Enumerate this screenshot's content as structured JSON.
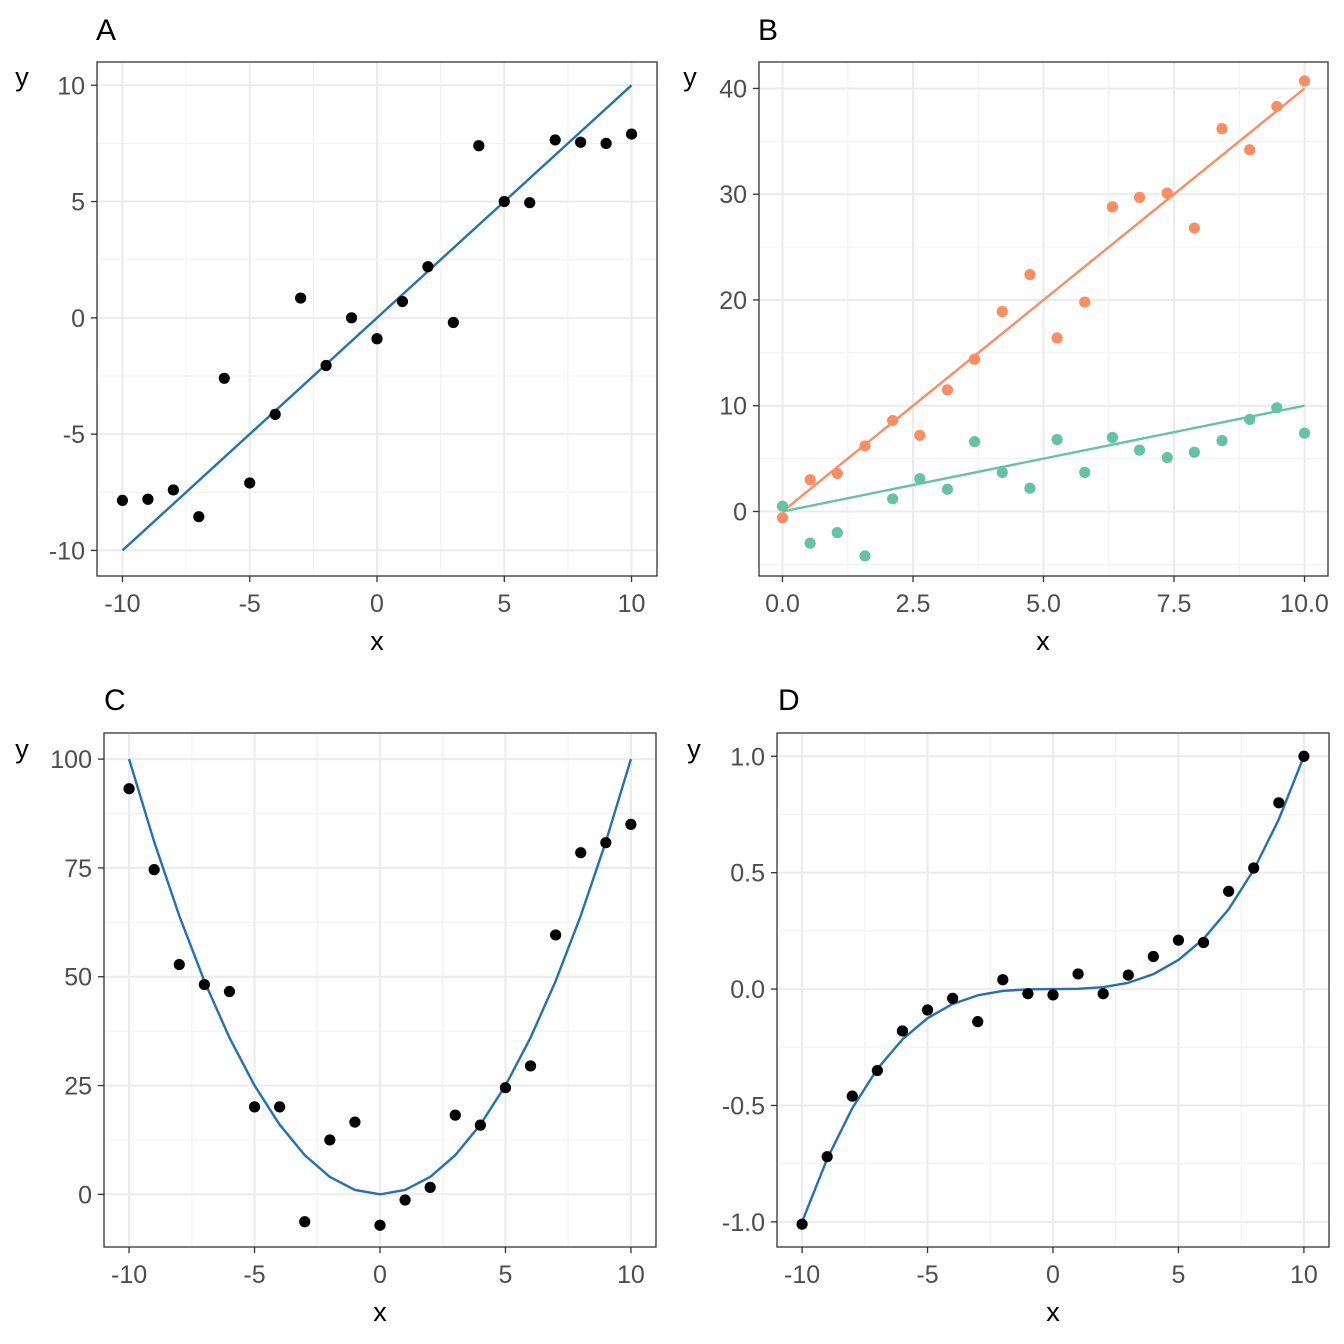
{
  "chart_data": [
    {
      "tag": "A",
      "type": "scatter",
      "title": "",
      "xlabel": "x",
      "ylabel": "y",
      "xlim": [
        -11,
        11
      ],
      "ylim": [
        -11.1,
        11
      ],
      "xticks": [
        -10,
        -5,
        0,
        5,
        10
      ],
      "xtick_labels": [
        "-10",
        "-5",
        "0",
        "5",
        "10"
      ],
      "yticks": [
        -10,
        -5,
        0,
        5,
        10
      ],
      "ytick_labels": [
        "-10",
        "-5",
        "0",
        "5",
        "10"
      ],
      "grid": true,
      "series": [
        {
          "name": "points",
          "kind": "points",
          "color": "#000000",
          "x": [
            -10,
            -9,
            -8,
            -7,
            -6,
            -5,
            -4,
            -3,
            -2,
            -1,
            0,
            1,
            2,
            3,
            4,
            5,
            6,
            7,
            8,
            9,
            10
          ],
          "y": [
            -7.85,
            -7.8,
            -7.4,
            -8.55,
            -2.6,
            -7.1,
            -4.15,
            0.85,
            -2.05,
            0.0,
            -0.9,
            0.7,
            2.2,
            -0.2,
            7.4,
            5.0,
            4.95,
            7.65,
            7.55,
            7.5,
            7.9
          ]
        },
        {
          "name": "fit line",
          "kind": "line",
          "color": "#2271b2",
          "x": [
            -10,
            10
          ],
          "y": [
            -10,
            10
          ]
        }
      ]
    },
    {
      "tag": "B",
      "type": "scatter",
      "title": "",
      "xlabel": "x",
      "ylabel": "y",
      "xlim": [
        -0.45,
        10.45
      ],
      "ylim": [
        -6.1,
        42.5
      ],
      "xticks": [
        0,
        2.5,
        5,
        7.5,
        10
      ],
      "xtick_labels": [
        "0.0",
        "2.5",
        "5.0",
        "7.5",
        "10.0"
      ],
      "yticks": [
        0,
        10,
        20,
        30,
        40
      ],
      "ytick_labels": [
        "0",
        "10",
        "20",
        "30",
        "40"
      ],
      "grid": true,
      "series": [
        {
          "name": "group 1 points",
          "kind": "points",
          "color": "#fc8d62",
          "x": [
            0,
            0.53,
            1.05,
            1.58,
            2.11,
            2.63,
            3.16,
            3.68,
            4.21,
            4.74,
            5.26,
            5.79,
            6.32,
            6.84,
            7.37,
            7.89,
            8.42,
            8.95,
            9.47,
            10
          ],
          "y": [
            -0.6,
            3.0,
            3.6,
            6.2,
            8.6,
            7.2,
            11.5,
            14.4,
            18.9,
            22.4,
            16.4,
            19.8,
            28.8,
            29.7,
            30.1,
            26.8,
            36.2,
            34.2,
            38.3,
            40.7
          ]
        },
        {
          "name": "group 1 fit",
          "kind": "line",
          "color": "#fc8d62",
          "x": [
            0,
            10
          ],
          "y": [
            0,
            40
          ]
        },
        {
          "name": "group 2 points",
          "kind": "points",
          "color": "#66c2a5",
          "x": [
            0,
            0.53,
            1.05,
            1.58,
            2.11,
            2.63,
            3.16,
            3.68,
            4.21,
            4.74,
            5.26,
            5.79,
            6.32,
            6.84,
            7.37,
            7.89,
            8.42,
            8.95,
            9.47,
            10
          ],
          "y": [
            0.5,
            -3.0,
            -2.0,
            -4.2,
            1.2,
            3.1,
            2.1,
            6.6,
            3.7,
            2.2,
            6.8,
            3.7,
            7.0,
            5.8,
            5.1,
            5.6,
            6.7,
            8.7,
            9.8,
            7.4
          ]
        },
        {
          "name": "group 2 fit",
          "kind": "line",
          "color": "#66c2a5",
          "x": [
            0,
            10
          ],
          "y": [
            0,
            10
          ]
        }
      ]
    },
    {
      "tag": "C",
      "type": "scatter",
      "title": "",
      "xlabel": "x",
      "ylabel": "y",
      "xlim": [
        -11,
        11
      ],
      "ylim": [
        -12.1,
        106
      ],
      "xticks": [
        -10,
        -5,
        0,
        5,
        10
      ],
      "xtick_labels": [
        "-10",
        "-5",
        "0",
        "5",
        "10"
      ],
      "yticks": [
        0,
        25,
        50,
        75,
        100
      ],
      "ytick_labels": [
        "0",
        "25",
        "50",
        "75",
        "100"
      ],
      "grid": true,
      "series": [
        {
          "name": "points",
          "kind": "points",
          "color": "#000000",
          "x": [
            -10,
            -9,
            -8,
            -7,
            -6,
            -5,
            -4,
            -3,
            -2,
            -1,
            0,
            1,
            2,
            3,
            4,
            5,
            6,
            7,
            8,
            9,
            10
          ],
          "y": [
            93.2,
            74.6,
            52.8,
            48.2,
            46.6,
            20.1,
            20.1,
            -6.3,
            12.5,
            16.6,
            -7.1,
            -1.3,
            1.6,
            18.2,
            15.9,
            24.5,
            29.5,
            59.6,
            78.5,
            80.8,
            85.0
          ]
        },
        {
          "name": "fit curve",
          "kind": "line",
          "color": "#2271b2",
          "x": [
            -10,
            -9,
            -8,
            -7,
            -6,
            -5,
            -4,
            -3,
            -2,
            -1,
            0,
            1,
            2,
            3,
            4,
            5,
            6,
            7,
            8,
            9,
            10
          ],
          "y": [
            100,
            81,
            64,
            49,
            36,
            25,
            16,
            9,
            4,
            1,
            0,
            1,
            4,
            9,
            16,
            25,
            36,
            49,
            64,
            81,
            100
          ]
        }
      ]
    },
    {
      "tag": "D",
      "type": "scatter",
      "title": "",
      "xlabel": "x",
      "ylabel": "y",
      "xlim": [
        -11,
        11
      ],
      "ylim": [
        -1.108,
        1.1
      ],
      "xticks": [
        -10,
        -5,
        0,
        5,
        10
      ],
      "xtick_labels": [
        "-10",
        "-5",
        "0",
        "5",
        "10"
      ],
      "yticks": [
        -1,
        -0.5,
        0,
        0.5,
        1
      ],
      "ytick_labels": [
        "-1.0",
        "-0.5",
        "0.0",
        "0.5",
        "1.0"
      ],
      "grid": true,
      "series": [
        {
          "name": "points",
          "kind": "points",
          "color": "#000000",
          "x": [
            -10,
            -9,
            -8,
            -7,
            -6,
            -5,
            -4,
            -3,
            -2,
            -1,
            0,
            1,
            2,
            3,
            4,
            5,
            6,
            7,
            8,
            9,
            10
          ],
          "y": [
            -1.01,
            -0.72,
            -0.46,
            -0.35,
            -0.18,
            -0.09,
            -0.04,
            -0.14,
            0.04,
            -0.02,
            -0.025,
            0.065,
            -0.02,
            0.06,
            0.14,
            0.21,
            0.2,
            0.42,
            0.52,
            0.8,
            1.0
          ]
        },
        {
          "name": "fit curve",
          "kind": "line",
          "color": "#2271b2",
          "x": [
            -10,
            -9,
            -8,
            -7,
            -6,
            -5,
            -4,
            -3,
            -2,
            -1,
            0,
            1,
            2,
            3,
            4,
            5,
            6,
            7,
            8,
            9,
            10
          ],
          "y": [
            -1.0,
            -0.729,
            -0.512,
            -0.343,
            -0.216,
            -0.125,
            -0.064,
            -0.027,
            -0.008,
            -0.001,
            0.0,
            0.001,
            0.008,
            0.027,
            0.064,
            0.125,
            0.216,
            0.343,
            0.512,
            0.729,
            1.0
          ]
        }
      ]
    }
  ]
}
